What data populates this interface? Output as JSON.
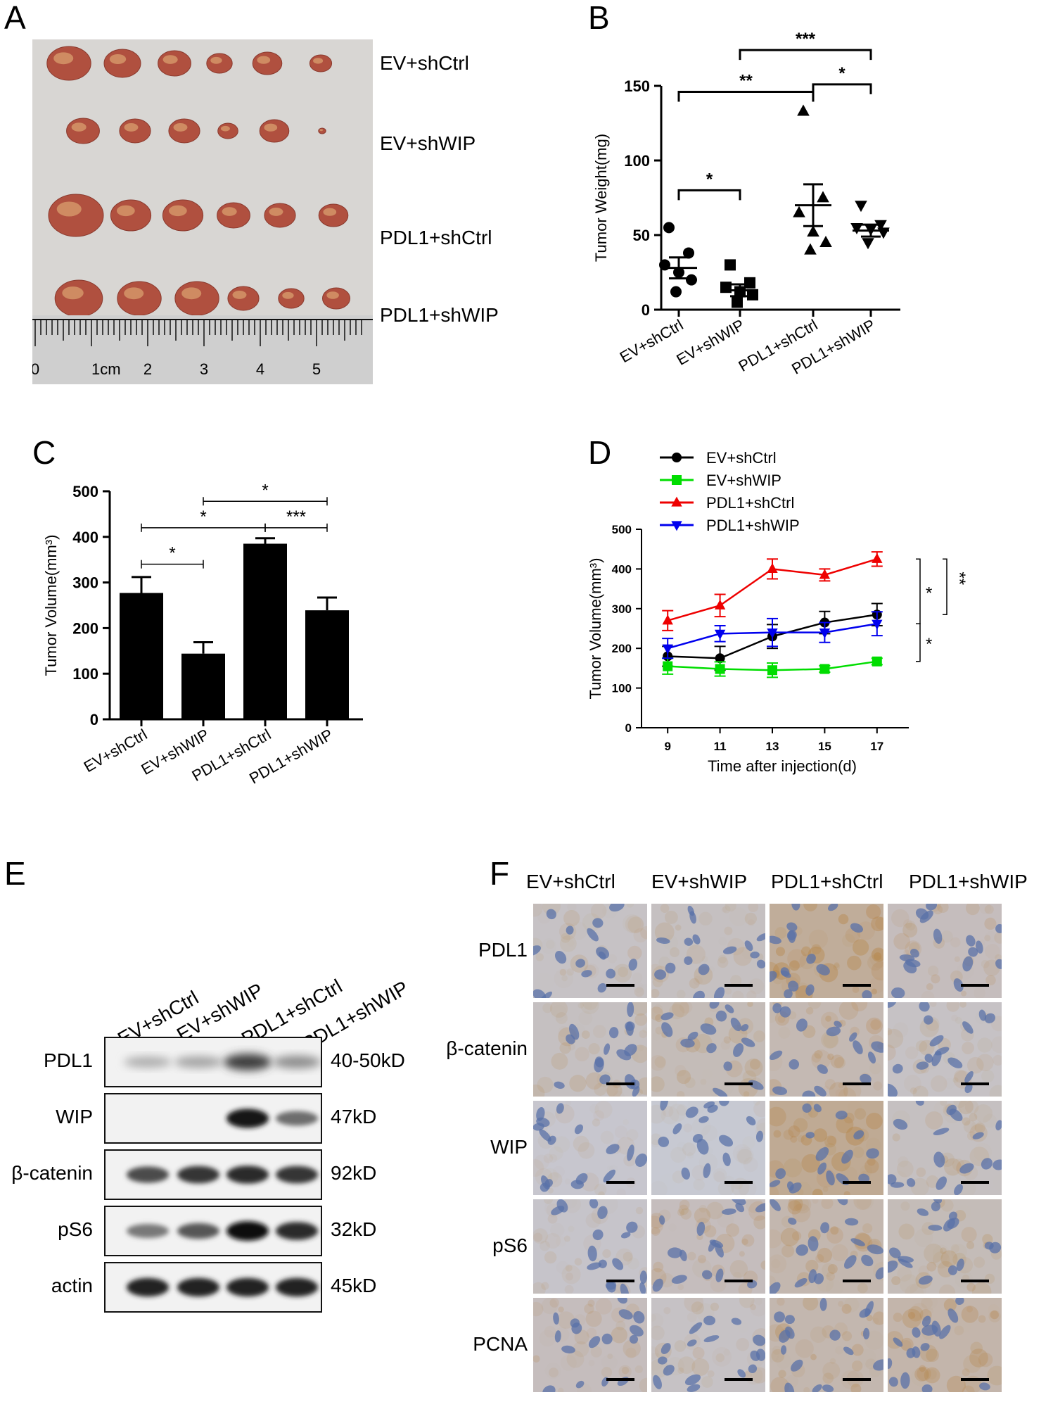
{
  "panels": {
    "A": {
      "letter": "A",
      "groups": [
        "EV+shCtrl",
        "EV+shWIP",
        "PDL1+shCtrl",
        "PDL1+shWIP"
      ],
      "ruler": {
        "ticks": [
          "0",
          "1cm",
          "2",
          "3",
          "4",
          "5"
        ]
      },
      "photo_colors": {
        "background": "#d8d6d3",
        "tumor": "#b0503f",
        "tumor_light": "#d79a6c"
      }
    },
    "B": {
      "letter": "B"
    },
    "C": {
      "letter": "C"
    },
    "D": {
      "letter": "D"
    },
    "E": {
      "letter": "E",
      "lanes": [
        "EV+shCtrl",
        "EV+shWIP",
        "PDL1+shCtrl",
        "PDL1+shWIP"
      ],
      "rows": [
        {
          "protein": "PDL1",
          "kd": "40-50kD",
          "intensity": [
            0.25,
            0.3,
            0.75,
            0.4
          ]
        },
        {
          "protein": "WIP",
          "kd": "47kD",
          "intensity": [
            0.0,
            0.0,
            0.95,
            0.55
          ]
        },
        {
          "protein": "β-catenin",
          "kd": "92kD",
          "intensity": [
            0.7,
            0.8,
            0.85,
            0.8
          ]
        },
        {
          "protein": "pS6",
          "kd": "32kD",
          "intensity": [
            0.5,
            0.65,
            0.98,
            0.85
          ]
        },
        {
          "protein": "actin",
          "kd": "45kD",
          "intensity": [
            0.9,
            0.9,
            0.9,
            0.9
          ]
        }
      ]
    },
    "F": {
      "letter": "F",
      "columns": [
        "EV+shCtrl",
        "EV+shWIP",
        "PDL1+shCtrl",
        "PDL1+shWIP"
      ],
      "rows": [
        "PDL1",
        "β-catenin",
        "WIP",
        "pS6",
        "PCNA"
      ],
      "brown_intensity": [
        [
          0.3,
          0.35,
          0.8,
          0.4
        ],
        [
          0.35,
          0.45,
          0.5,
          0.3
        ],
        [
          0.2,
          0.15,
          0.85,
          0.35
        ],
        [
          0.25,
          0.4,
          0.55,
          0.45
        ],
        [
          0.4,
          0.3,
          0.55,
          0.6
        ]
      ],
      "colors": {
        "hematoxylin": "#5a72a8",
        "dab": "#b5813f",
        "background": "#c9cfe0"
      }
    }
  },
  "chart_data": [
    {
      "panel": "B",
      "type": "scatter",
      "title": "",
      "ylabel": "Tumor Weight(mg)",
      "xlabel": "",
      "ylim": [
        0,
        150
      ],
      "yticks": [
        "0",
        "50",
        "100",
        "150"
      ],
      "categories": [
        "EV+shCtrl",
        "EV+shWIP",
        "PDL1+shCtrl",
        "PDL1+shWIP"
      ],
      "markers": [
        "circle",
        "square",
        "triangle-up",
        "triangle-down"
      ],
      "points": [
        [
          55,
          38,
          30,
          25,
          20,
          12
        ],
        [
          30,
          18,
          15,
          12,
          10,
          5
        ],
        [
          133,
          75,
          65,
          52,
          45,
          40
        ],
        [
          70,
          57,
          55,
          54,
          52,
          45
        ]
      ],
      "mean": [
        28,
        13,
        70,
        53
      ],
      "sem": [
        7,
        4,
        14,
        4
      ],
      "significance": [
        {
          "from": 0,
          "to": 1,
          "label": "*",
          "y": 80
        },
        {
          "from": 0,
          "to": 2,
          "label": "**",
          "y": 146
        },
        {
          "from": 2,
          "to": 3,
          "label": "*",
          "y": 151
        },
        {
          "from": 1,
          "to": 3,
          "label": "***",
          "y": 174
        }
      ]
    },
    {
      "panel": "C",
      "type": "bar",
      "title": "",
      "ylabel": "Tumor Volume(mm³)",
      "xlabel": "",
      "ylim": [
        0,
        500
      ],
      "yticks": [
        "0",
        "100",
        "200",
        "300",
        "400",
        "500"
      ],
      "categories": [
        "EV+shCtrl",
        "EV+shWIP",
        "PDL1+shCtrl",
        "PDL1+shWIP"
      ],
      "values": [
        277,
        144,
        385,
        239
      ],
      "errors": [
        35,
        25,
        12,
        28
      ],
      "significance": [
        {
          "from": 0,
          "to": 1,
          "label": "*",
          "y": 340
        },
        {
          "from": 0,
          "to": 2,
          "label": "*",
          "y": 420
        },
        {
          "from": 2,
          "to": 3,
          "label": "***",
          "y": 420
        },
        {
          "from": 1,
          "to": 3,
          "label": "*",
          "y": 478
        }
      ]
    },
    {
      "panel": "D",
      "type": "line",
      "title": "",
      "xlabel": "Time after injection(d)",
      "ylabel": "Tumor Volume(mm³)",
      "ylim": [
        0,
        500
      ],
      "yticks": [
        "0",
        "100",
        "200",
        "300",
        "400",
        "500"
      ],
      "x": [
        9,
        11,
        13,
        15,
        17
      ],
      "xticks": [
        "9",
        "11",
        "13",
        "15",
        "17"
      ],
      "legend_position": "top-left",
      "series": [
        {
          "name": "EV+shCtrl",
          "color": "#000000",
          "marker": "circle",
          "values": [
            180,
            175,
            230,
            265,
            285
          ],
          "errors": [
            25,
            30,
            30,
            28,
            28
          ]
        },
        {
          "name": "EV+shWIP",
          "color": "#00dd00",
          "marker": "square",
          "values": [
            155,
            148,
            145,
            148,
            167
          ],
          "errors": [
            20,
            18,
            18,
            8,
            8
          ]
        },
        {
          "name": "PDL1+shCtrl",
          "color": "#ee0000",
          "marker": "triangle-up",
          "values": [
            270,
            308,
            400,
            385,
            425
          ],
          "errors": [
            25,
            28,
            25,
            15,
            18
          ]
        },
        {
          "name": "PDL1+shWIP",
          "color": "#0000ee",
          "marker": "triangle-down",
          "values": [
            200,
            237,
            240,
            240,
            262
          ],
          "errors": [
            25,
            20,
            35,
            25,
            30
          ]
        }
      ],
      "significance": [
        {
          "between": [
            "PDL1+shCtrl",
            "PDL1+shWIP"
          ],
          "label": "*"
        },
        {
          "between": [
            "PDL1+shCtrl",
            "EV+shCtrl"
          ],
          "label": "**"
        },
        {
          "between": [
            "PDL1+shWIP",
            "EV+shWIP"
          ],
          "label": "*"
        }
      ]
    }
  ]
}
